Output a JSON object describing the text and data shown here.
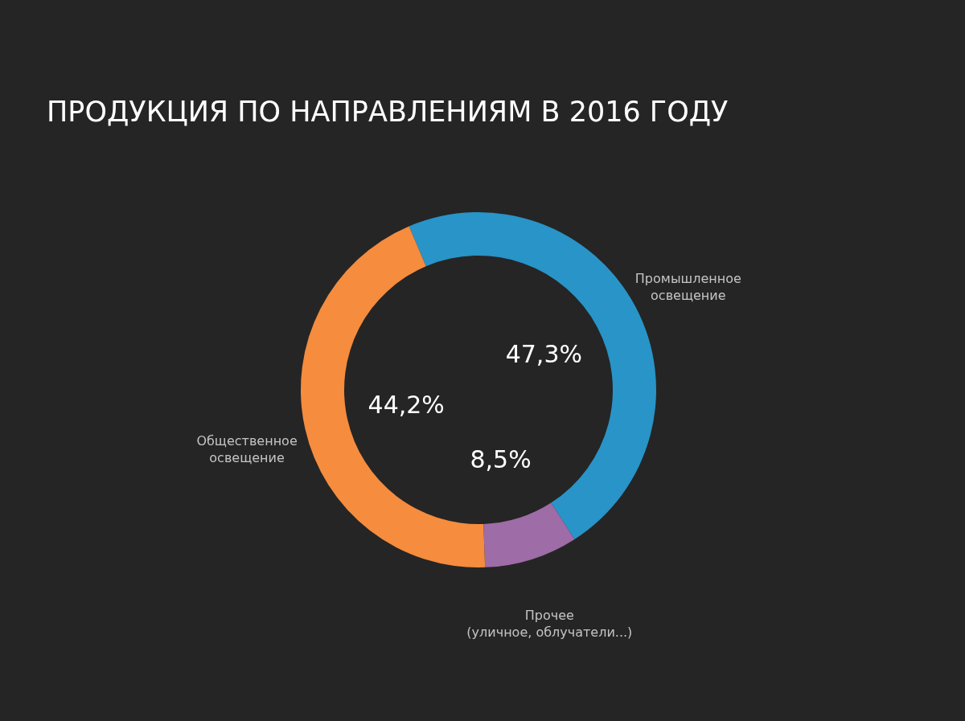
{
  "chart_data": {
    "type": "donut",
    "title": "ПРОДУКЦИЯ ПО НАПРАВЛЕНИЯМ В 2016 ГОДУ",
    "categories": [
      "Промышленное освещение",
      "Прочее (уличное, облучатели...)",
      "Общественное освещение"
    ],
    "values": [
      47.3,
      8.5,
      44.2
    ],
    "colors": [
      "#2894c8",
      "#9e6ca6",
      "#f58c3e"
    ],
    "value_labels": [
      "47,3%",
      "8,5%",
      "44,2%"
    ]
  }
}
